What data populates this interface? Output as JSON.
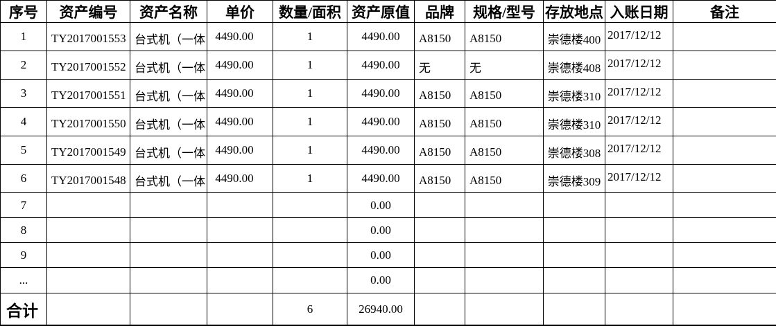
{
  "table": {
    "header_labels": [
      "序号",
      "资产编号",
      "资产名称",
      "单价",
      "数量/面积",
      "资产原值",
      "品牌",
      "规格/型号",
      "存放地点",
      "入账日期",
      "备注"
    ],
    "rows": [
      [
        "1",
        "TY2017001553",
        "台式机（一体",
        "4490.00",
        "1",
        "4490.00",
        "A8150",
        "A8150",
        "崇德楼400",
        "2017/12/12",
        ""
      ],
      [
        "2",
        "TY2017001552",
        "台式机（一体",
        "4490.00",
        "1",
        "4490.00",
        "无",
        "无",
        "崇德楼408",
        "2017/12/12",
        ""
      ],
      [
        "3",
        "TY2017001551",
        "台式机（一体",
        "4490.00",
        "1",
        "4490.00",
        "A8150",
        "A8150",
        "崇德楼310",
        "2017/12/12",
        ""
      ],
      [
        "4",
        "TY2017001550",
        "台式机（一体",
        "4490.00",
        "1",
        "4490.00",
        "A8150",
        "A8150",
        "崇德楼310",
        "2017/12/12",
        ""
      ],
      [
        "5",
        "TY2017001549",
        "台式机（一体",
        "4490.00",
        "1",
        "4490.00",
        "A8150",
        "A8150",
        "崇德楼308",
        "2017/12/12",
        ""
      ],
      [
        "6",
        "TY2017001548",
        "台式机（一体",
        "4490.00",
        "1",
        "4490.00",
        "A8150",
        "A8150",
        "崇德楼309",
        "2017/12/12",
        ""
      ],
      [
        "7",
        "",
        "",
        "",
        "",
        "0.00",
        "",
        "",
        "",
        "",
        ""
      ],
      [
        "8",
        "",
        "",
        "",
        "",
        "0.00",
        "",
        "",
        "",
        "",
        ""
      ],
      [
        "9",
        "",
        "",
        "",
        "",
        "0.00",
        "",
        "",
        "",
        "",
        ""
      ],
      [
        "...",
        "",
        "",
        "",
        "",
        "0.00",
        "",
        "",
        "",
        "",
        ""
      ]
    ],
    "total_cells": [
      "合计",
      "",
      "",
      "",
      "6",
      "26940.00",
      "",
      "",
      "",
      "",
      ""
    ]
  }
}
